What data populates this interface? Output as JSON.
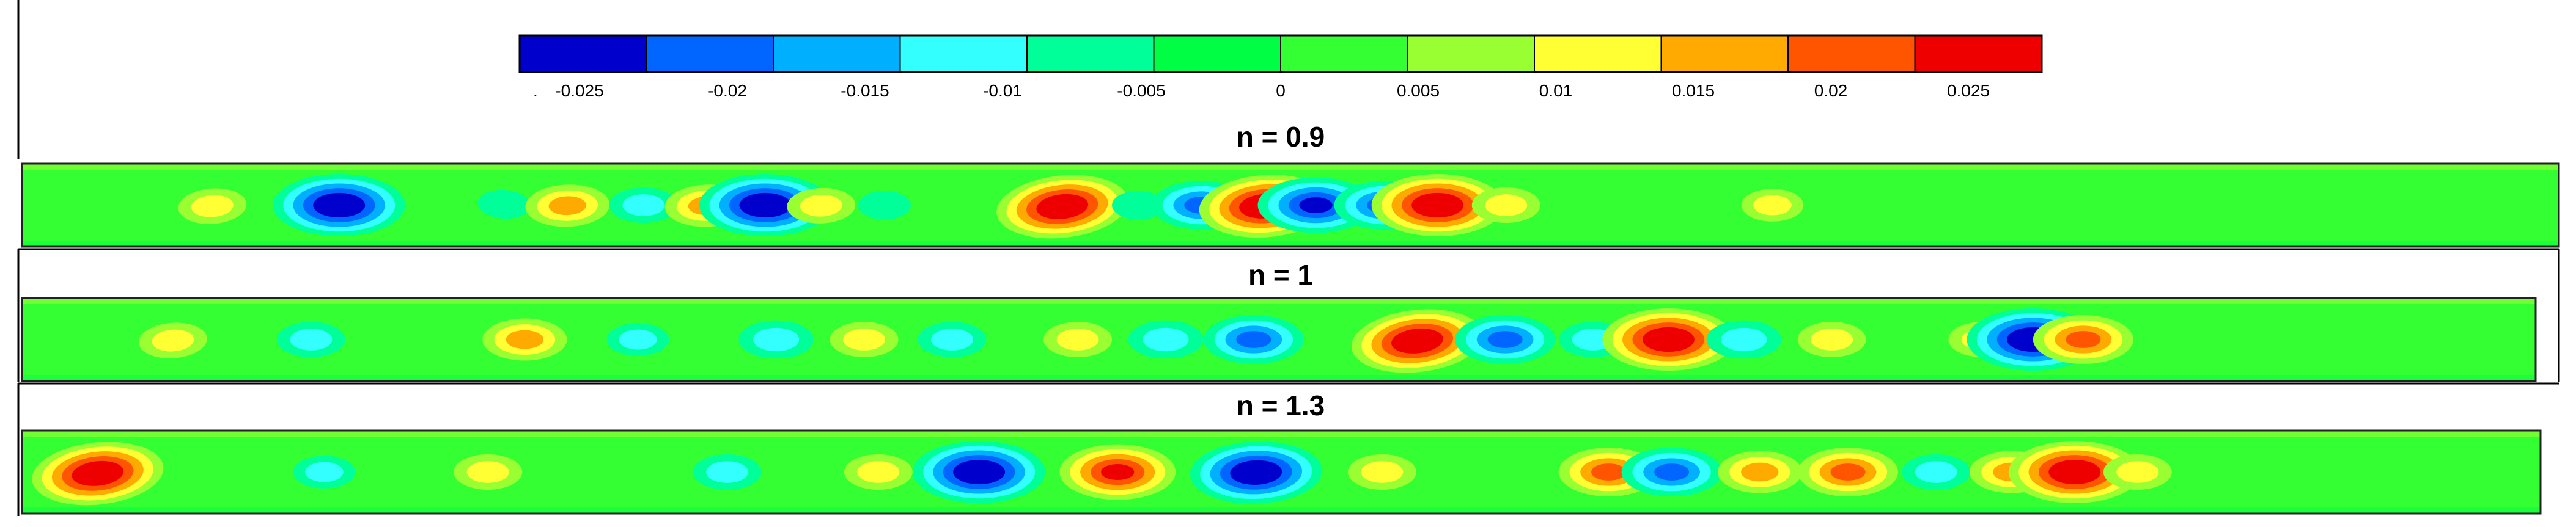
{
  "colorbar": {
    "colors": [
      "#0000cc",
      "#0066ff",
      "#00b0ff",
      "#33ffff",
      "#00ff99",
      "#00ff44",
      "#33ff33",
      "#99ff33",
      "#ffff33",
      "#ffaa00",
      "#ff5500",
      "#ee0000"
    ],
    "tick_labels": [
      "-0.025",
      "-0.02",
      "-0.015",
      "-0.01",
      "-0.005",
      "0",
      "0.005",
      "0.01",
      "0.015",
      "0.02",
      "0.025"
    ],
    "min": -0.03,
    "max": 0.03
  },
  "panels": [
    {
      "title": "n = 0.9",
      "blobs": [
        {
          "x": 0.075,
          "v": 0.01,
          "wobble": 0.2
        },
        {
          "x": 0.125,
          "v": -0.03,
          "wobble": 0.0
        },
        {
          "x": 0.19,
          "v": -0.005,
          "wobble": -0.2
        },
        {
          "x": 0.215,
          "v": 0.015,
          "wobble": 0.1
        },
        {
          "x": 0.245,
          "v": -0.01,
          "wobble": 0.0
        },
        {
          "x": 0.27,
          "v": 0.015,
          "wobble": 0.1
        },
        {
          "x": 0.293,
          "v": -0.03,
          "wobble": 0.0
        },
        {
          "x": 0.315,
          "v": 0.01,
          "wobble": 0.1
        },
        {
          "x": 0.34,
          "v": -0.005,
          "wobble": 0.0
        },
        {
          "x": 0.41,
          "v": 0.03,
          "wobble": 0.3
        },
        {
          "x": 0.44,
          "v": -0.005,
          "wobble": 0.0
        },
        {
          "x": 0.465,
          "v": -0.02,
          "wobble": 0.0
        },
        {
          "x": 0.49,
          "v": 0.03,
          "wobble": 0.2
        },
        {
          "x": 0.51,
          "v": -0.025,
          "wobble": 0.0
        },
        {
          "x": 0.537,
          "v": -0.02,
          "wobble": 0.0
        },
        {
          "x": 0.558,
          "v": 0.03,
          "wobble": 0.0
        },
        {
          "x": 0.585,
          "v": 0.01,
          "wobble": 0.0
        },
        {
          "x": 0.69,
          "v": 0.008,
          "wobble": 0.0
        }
      ]
    },
    {
      "title": "n = 1",
      "blobs": [
        {
          "x": 0.06,
          "v": 0.01,
          "wobble": 0.2
        },
        {
          "x": 0.115,
          "v": -0.01,
          "wobble": 0.0
        },
        {
          "x": 0.2,
          "v": 0.015,
          "wobble": 0.0
        },
        {
          "x": 0.245,
          "v": -0.008,
          "wobble": 0.0
        },
        {
          "x": 0.3,
          "v": -0.012,
          "wobble": 0.0
        },
        {
          "x": 0.335,
          "v": 0.01,
          "wobble": 0.0
        },
        {
          "x": 0.37,
          "v": -0.01,
          "wobble": 0.0
        },
        {
          "x": 0.42,
          "v": 0.01,
          "wobble": 0.0
        },
        {
          "x": 0.455,
          "v": -0.012,
          "wobble": 0.0
        },
        {
          "x": 0.49,
          "v": -0.02,
          "wobble": 0.0
        },
        {
          "x": 0.555,
          "v": 0.03,
          "wobble": 0.3
        },
        {
          "x": 0.59,
          "v": -0.02,
          "wobble": 0.0
        },
        {
          "x": 0.625,
          "v": -0.01,
          "wobble": 0.0
        },
        {
          "x": 0.655,
          "v": 0.03,
          "wobble": 0.0
        },
        {
          "x": 0.685,
          "v": -0.012,
          "wobble": 0.0
        },
        {
          "x": 0.72,
          "v": 0.01,
          "wobble": 0.0
        },
        {
          "x": 0.78,
          "v": 0.01,
          "wobble": 0.0
        },
        {
          "x": 0.8,
          "v": -0.03,
          "wobble": 0.0
        },
        {
          "x": 0.82,
          "v": 0.02,
          "wobble": 0.0
        }
      ]
    },
    {
      "title": "n = 1.3",
      "blobs": [
        {
          "x": 0.03,
          "v": 0.03,
          "wobble": 0.3
        },
        {
          "x": 0.12,
          "v": -0.008,
          "wobble": 0.0
        },
        {
          "x": 0.185,
          "v": 0.01,
          "wobble": 0.0
        },
        {
          "x": 0.28,
          "v": -0.01,
          "wobble": 0.0
        },
        {
          "x": 0.34,
          "v": 0.01,
          "wobble": 0.0
        },
        {
          "x": 0.38,
          "v": -0.03,
          "wobble": 0.0
        },
        {
          "x": 0.435,
          "v": 0.025,
          "wobble": 0.0
        },
        {
          "x": 0.49,
          "v": -0.03,
          "wobble": 0.1
        },
        {
          "x": 0.54,
          "v": 0.01,
          "wobble": 0.0
        },
        {
          "x": 0.63,
          "v": 0.02,
          "wobble": 0.0
        },
        {
          "x": 0.655,
          "v": -0.02,
          "wobble": 0.0
        },
        {
          "x": 0.69,
          "v": 0.015,
          "wobble": 0.0
        },
        {
          "x": 0.725,
          "v": 0.02,
          "wobble": 0.0
        },
        {
          "x": 0.76,
          "v": -0.01,
          "wobble": 0.0
        },
        {
          "x": 0.79,
          "v": 0.015,
          "wobble": 0.0
        },
        {
          "x": 0.815,
          "v": 0.03,
          "wobble": 0.0
        },
        {
          "x": 0.84,
          "v": 0.01,
          "wobble": 0.0
        }
      ]
    }
  ]
}
